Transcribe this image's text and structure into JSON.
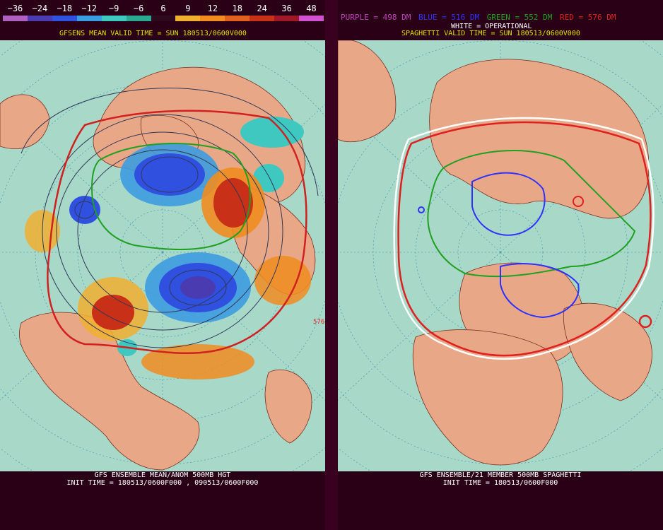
{
  "left": {
    "colorbar": {
      "labels": [
        "−36",
        "−24",
        "−18",
        "−12",
        "−9",
        "−6",
        "6",
        "9",
        "12",
        "18",
        "24",
        "36",
        "48"
      ],
      "colors": [
        "#b060c0",
        "#4a3cb0",
        "#3050e0",
        "#3c9ce0",
        "#3ec8c0",
        "#2aa890",
        "#2f0a1f",
        "#f0b030",
        "#f08c20",
        "#e06020",
        "#c83018",
        "#a01828",
        "#d050d0"
      ]
    },
    "header": "GFSENS MEAN VALID TIME = SUN 180513/0600V000",
    "footer_line1": "GFS ENSEMBLE MEAN/ANOM 500MB HGT",
    "footer_line2": "INIT TIME = 180513/0600F000 , 090513/0600F000",
    "contour_label": "576"
  },
  "right": {
    "legend": [
      {
        "text": "PURPLE = 498 DM",
        "color": "#c040c0"
      },
      {
        "text": "BLUE = 516 DM",
        "color": "#3030ff"
      },
      {
        "text": "GREEN = 552 DM",
        "color": "#20a020"
      },
      {
        "text": "RED = 576 DM",
        "color": "#e02020"
      }
    ],
    "subtitle": "WHITE = OPERATIONAL",
    "header": "SPAGHETTI VALID TIME = SUN 180513/0600V000",
    "footer_line1": "GFS ENSEMBLE/21 MEMBER 500MB SPAGHETTI",
    "footer_line2": "INIT TIME = 180513/0600F000"
  },
  "colors": {
    "ocean": "#a8d8c8",
    "land": "#e8a888",
    "background": "#2a0016"
  }
}
